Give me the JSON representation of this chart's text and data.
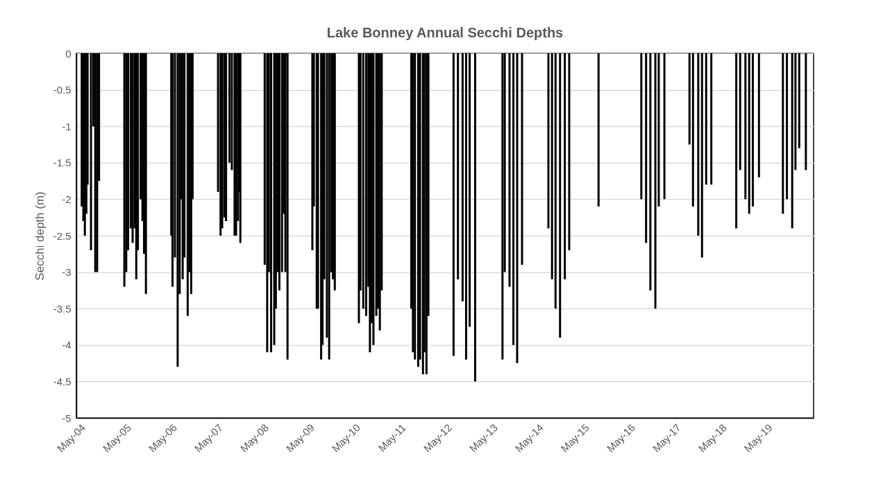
{
  "chart_data": {
    "type": "bar",
    "title": "Lake Bonney Annual Secchi Depths",
    "ylabel": "Secchi depth (m)",
    "x": [
      "2004-05-16",
      "2004-05-29",
      "2004-06-10",
      "2004-06-22",
      "2004-07-02",
      "2004-07-29",
      "2004-08-17",
      "2004-09-01",
      "2004-09-16",
      "2004-10-01",
      "2005-04-21",
      "2005-05-06",
      "2005-05-21",
      "2005-06-11",
      "2005-06-26",
      "2005-07-12",
      "2005-07-25",
      "2005-08-07",
      "2005-08-29",
      "2005-09-12",
      "2005-09-25",
      "2005-10-10",
      "2006-04-30",
      "2006-05-10",
      "2006-05-29",
      "2006-06-20",
      "2006-07-06",
      "2006-07-19",
      "2006-07-30",
      "2006-08-13",
      "2006-09-08",
      "2006-09-23",
      "2006-10-06",
      "2006-10-17",
      "2007-05-08",
      "2007-05-28",
      "2007-06-10",
      "2007-06-27",
      "2007-07-11",
      "2007-08-07",
      "2007-08-26",
      "2007-09-17",
      "2007-09-29",
      "2007-10-14",
      "2007-10-23",
      "2007-11-02",
      "2008-05-14",
      "2008-06-03",
      "2008-06-16",
      "2008-07-04",
      "2008-07-29",
      "2008-08-11",
      "2008-08-25",
      "2008-09-08",
      "2008-09-29",
      "2008-10-13",
      "2008-10-26",
      "2008-11-12",
      "2009-05-29",
      "2009-06-10",
      "2009-07-03",
      "2009-07-13",
      "2009-08-07",
      "2009-08-18",
      "2009-09-01",
      "2009-09-22",
      "2009-10-10",
      "2009-10-27",
      "2009-11-09",
      "2009-11-24",
      "2010-06-04",
      "2010-06-17",
      "2010-07-09",
      "2010-08-01",
      "2010-08-19",
      "2010-08-31",
      "2010-09-14",
      "2010-09-28",
      "2010-10-21",
      "2010-11-03",
      "2010-11-18",
      "2010-12-03",
      "2011-07-27",
      "2011-08-09",
      "2011-08-25",
      "2011-09-20",
      "2011-10-05",
      "2011-10-28",
      "2011-11-08",
      "2011-11-25",
      "2011-12-10",
      "2012-06-28",
      "2012-08-02",
      "2012-09-08",
      "2012-10-06",
      "2012-11-03",
      "2012-12-17",
      "2013-07-23",
      "2013-08-10",
      "2013-09-17",
      "2013-10-18",
      "2013-11-17",
      "2013-12-26",
      "2014-07-24",
      "2014-08-22",
      "2014-09-19",
      "2014-10-25",
      "2014-12-02",
      "2015-01-06",
      "2015-08-28",
      "2016-08-03",
      "2016-09-10",
      "2016-10-14",
      "2016-11-23",
      "2016-12-20",
      "2017-02-03",
      "2017-08-22",
      "2017-09-19",
      "2017-10-31",
      "2017-11-30",
      "2018-01-02",
      "2018-02-12",
      "2018-08-30",
      "2018-09-30",
      "2018-11-11",
      "2018-12-11",
      "2019-01-09",
      "2019-02-27",
      "2019-09-06",
      "2019-10-08",
      "2019-11-19",
      "2019-12-15",
      "2020-01-14",
      "2020-03-07"
    ],
    "values": [
      -2.1,
      -2.3,
      -2.5,
      -2.2,
      -1.8,
      -2.7,
      -1.0,
      -3.0,
      -3.0,
      -1.75,
      -3.2,
      -3.0,
      -2.7,
      -2.4,
      -2.6,
      -2.4,
      -3.1,
      -2.7,
      -2.0,
      -2.3,
      -2.75,
      -3.3,
      -2.5,
      -3.2,
      -2.8,
      -4.3,
      -3.3,
      -2.0,
      -3.1,
      -2.8,
      -3.6,
      -3.0,
      -3.3,
      -2.0,
      -1.9,
      -2.5,
      -2.4,
      -2.25,
      -2.3,
      -1.5,
      -1.6,
      -2.5,
      -2.5,
      -2.3,
      -1.9,
      -2.6,
      -2.9,
      -4.1,
      -3.0,
      -4.1,
      -4.0,
      -3.5,
      -3.0,
      -3.25,
      -3.0,
      -2.2,
      -3.0,
      -4.2,
      -2.7,
      -2.1,
      -3.5,
      -3.5,
      -4.2,
      -4.0,
      -3.1,
      -3.9,
      -4.2,
      -3.0,
      -3.1,
      -3.25,
      -3.7,
      -3.25,
      -3.5,
      -3.6,
      -3.2,
      -4.1,
      -3.7,
      -4.0,
      -3.6,
      -3.5,
      -3.8,
      -3.25,
      -3.5,
      -4.1,
      -4.2,
      -4.3,
      -4.2,
      -4.4,
      -4.1,
      -4.4,
      -3.6,
      -4.15,
      -3.1,
      -3.4,
      -4.2,
      -3.75,
      -4.5,
      -4.2,
      -3.0,
      -3.2,
      -4.0,
      -4.25,
      -2.9,
      -2.4,
      -3.1,
      -3.5,
      -3.9,
      -3.1,
      -2.7,
      -2.1,
      -2.0,
      -2.6,
      -3.25,
      -3.5,
      -2.1,
      -2.0,
      -1.25,
      -2.1,
      -2.5,
      -2.8,
      -1.8,
      -1.8,
      -2.4,
      -1.6,
      -2.0,
      -2.2,
      -2.1,
      -1.7,
      -2.2,
      -2.0,
      -2.4,
      -1.6,
      -1.3,
      -1.6
    ],
    "color": "#000000",
    "xlim": [
      "2004-05-01",
      "2020-04-10"
    ],
    "xticks": [
      {
        "value": "2004-05-01",
        "label": "May-04"
      },
      {
        "value": "2005-05-01",
        "label": "May-05"
      },
      {
        "value": "2006-05-01",
        "label": "May-06"
      },
      {
        "value": "2007-05-01",
        "label": "May-07"
      },
      {
        "value": "2008-05-01",
        "label": "May-08"
      },
      {
        "value": "2009-05-01",
        "label": "May-09"
      },
      {
        "value": "2010-05-01",
        "label": "May-10"
      },
      {
        "value": "2011-05-01",
        "label": "May-11"
      },
      {
        "value": "2012-05-01",
        "label": "May-12"
      },
      {
        "value": "2013-05-01",
        "label": "May-13"
      },
      {
        "value": "2014-05-01",
        "label": "May-14"
      },
      {
        "value": "2015-05-01",
        "label": "May-15"
      },
      {
        "value": "2016-05-01",
        "label": "May-16"
      },
      {
        "value": "2017-05-01",
        "label": "May-17"
      },
      {
        "value": "2018-05-01",
        "label": "May-18"
      },
      {
        "value": "2019-05-01",
        "label": "May-19"
      }
    ],
    "ylim": [
      -5,
      0
    ],
    "yticks": [
      0,
      -0.5,
      -1,
      -1.5,
      -2,
      -2.5,
      -3,
      -3.5,
      -4,
      -4.5,
      -5
    ],
    "grid": "y"
  }
}
